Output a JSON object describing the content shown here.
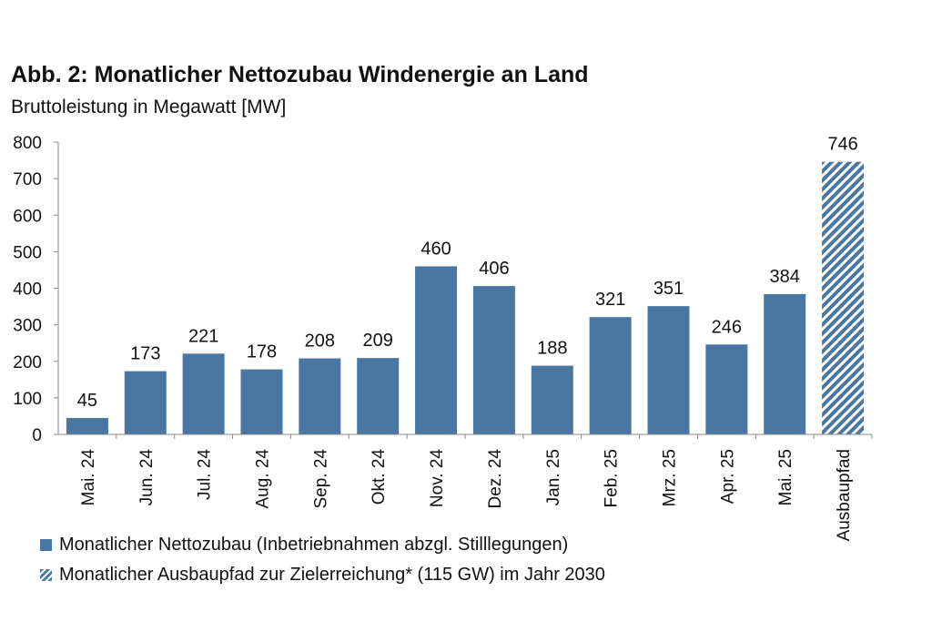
{
  "chart_data": {
    "type": "bar",
    "title": "Abb. 2: Monatlicher Nettozubau Windenergie an Land",
    "subtitle": "Bruttoleistung in Megawatt [MW]",
    "categories": [
      "Mai. 24",
      "Jun. 24",
      "Jul. 24",
      "Aug. 24",
      "Sep. 24",
      "Okt. 24",
      "Nov. 24",
      "Dez. 24",
      "Jan. 25",
      "Feb. 25",
      "Mrz. 25",
      "Apr. 25",
      "Mai. 25",
      "Ausbaupfad"
    ],
    "values": [
      45,
      173,
      221,
      178,
      208,
      209,
      460,
      406,
      188,
      321,
      351,
      246,
      384,
      746
    ],
    "bar_styles": [
      "solid",
      "solid",
      "solid",
      "solid",
      "solid",
      "solid",
      "solid",
      "solid",
      "solid",
      "solid",
      "solid",
      "solid",
      "solid",
      "hatched"
    ],
    "ylim": [
      0,
      800
    ],
    "yticks": [
      0,
      100,
      200,
      300,
      400,
      500,
      600,
      700,
      800
    ],
    "grid": false,
    "legend_position": "bottom-left",
    "legend": [
      {
        "label": "Monatlicher Nettozubau (Inbetriebnahmen abzgl. Stilllegungen)",
        "style": "solid"
      },
      {
        "label": "Monatlicher Ausbaupfad zur Zielerreichung* (115 GW) im Jahr 2030",
        "style": "hatched"
      }
    ],
    "bar_color": "#4a76a2"
  }
}
